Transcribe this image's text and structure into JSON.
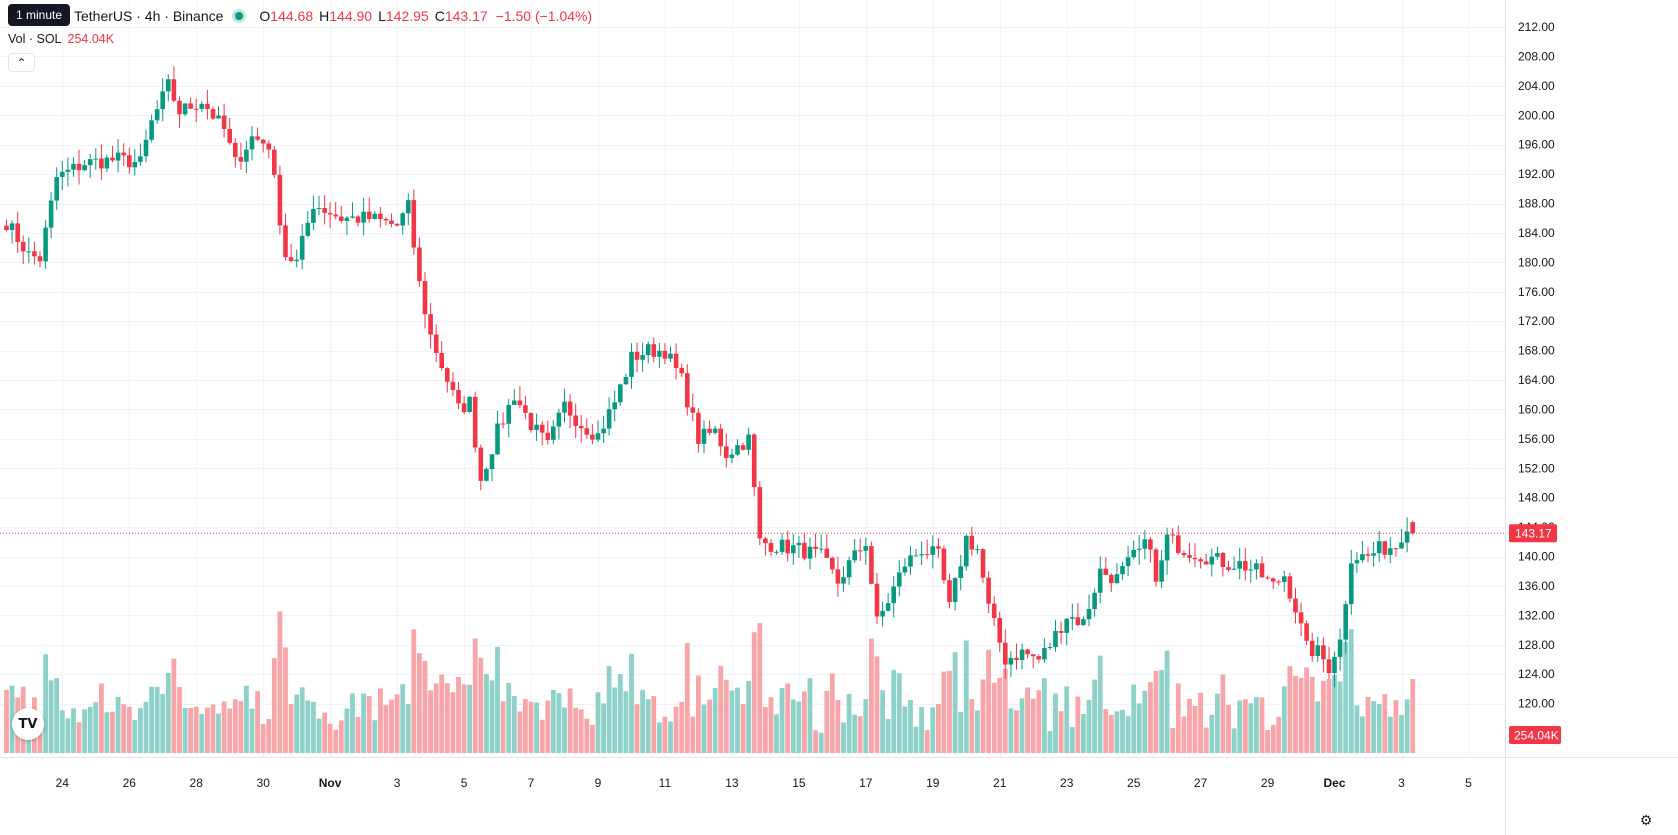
{
  "header": {
    "tooltip": "1 minute",
    "symbol_title": "TetherUS · 4h · Binance",
    "ohlc": {
      "o_label": "O",
      "o_value": "144.68",
      "h_label": "H",
      "h_value": "144.90",
      "l_label": "L",
      "l_value": "142.95",
      "c_label": "C",
      "c_value": "143.17",
      "change": "−1.50 (−1.04%)"
    },
    "volume": {
      "label": "Vol · SOL",
      "value": "254.04K"
    },
    "collapse_icon": "chevron-up-icon"
  },
  "footer": {
    "logo_text": "TV",
    "settings_icon": "gear-icon"
  },
  "colors": {
    "up": "#089981",
    "down": "#f23645",
    "vol_up": "#8dd1c8",
    "vol_down": "#f7a5a8",
    "grid": "#f0f3fa"
  },
  "chart_data": {
    "type": "candlestick",
    "interval": "4h",
    "price_axis": {
      "ylim": [
        118,
        214
      ],
      "ticks": [
        "212.00",
        "208.00",
        "204.00",
        "200.00",
        "196.00",
        "192.00",
        "188.00",
        "184.00",
        "180.00",
        "176.00",
        "172.00",
        "168.00",
        "164.00",
        "160.00",
        "156.00",
        "152.00",
        "148.00",
        "144.00",
        "140.00",
        "136.00",
        "132.00",
        "128.00",
        "124.00",
        "120.00"
      ],
      "last_price_label": "143.17",
      "last_price": 143.17
    },
    "volume_axis": {
      "last_label": "254.04K"
    },
    "time_axis": {
      "labels": [
        "24",
        "26",
        "28",
        "30",
        "Nov",
        "3",
        "5",
        "7",
        "9",
        "11",
        "13",
        "15",
        "17",
        "19",
        "21",
        "23",
        "25",
        "27",
        "29",
        "Dec",
        "3",
        "5"
      ],
      "label_bar_index": [
        10,
        22,
        34,
        46,
        58,
        70,
        82,
        94,
        106,
        118,
        130,
        142,
        154,
        166,
        178,
        190,
        202,
        214,
        226,
        238,
        250,
        262
      ],
      "bold_labels": [
        "Nov",
        "Dec"
      ]
    },
    "waypoints": [
      [
        0,
        185.5
      ],
      [
        4,
        181
      ],
      [
        6,
        180.5
      ],
      [
        9,
        191.5
      ],
      [
        14,
        193.5
      ],
      [
        20,
        194
      ],
      [
        24,
        193.5
      ],
      [
        26,
        199
      ],
      [
        29,
        204
      ],
      [
        31,
        200.5
      ],
      [
        35,
        202
      ],
      [
        39,
        198
      ],
      [
        41,
        193.5
      ],
      [
        44,
        197
      ],
      [
        47,
        196
      ],
      [
        50,
        181
      ],
      [
        52,
        180
      ],
      [
        55,
        188
      ],
      [
        60,
        186
      ],
      [
        65,
        186
      ],
      [
        70,
        185
      ],
      [
        72,
        187.5
      ],
      [
        74,
        177
      ],
      [
        76,
        170
      ],
      [
        78,
        166
      ],
      [
        81,
        160
      ],
      [
        83,
        161
      ],
      [
        85,
        150.5
      ],
      [
        88,
        157
      ],
      [
        91,
        162
      ],
      [
        94,
        158
      ],
      [
        97,
        155
      ],
      [
        100,
        160.5
      ],
      [
        103,
        158
      ],
      [
        106,
        156.5
      ],
      [
        109,
        161
      ],
      [
        112,
        167
      ],
      [
        115,
        168
      ],
      [
        118,
        168
      ],
      [
        121,
        164
      ],
      [
        124,
        156
      ],
      [
        127,
        157
      ],
      [
        129,
        154
      ],
      [
        131,
        155
      ],
      [
        133,
        156
      ],
      [
        135,
        142
      ],
      [
        138,
        141.5
      ],
      [
        142,
        141
      ],
      [
        146,
        140
      ],
      [
        149,
        136.5
      ],
      [
        151,
        139
      ],
      [
        154,
        142
      ],
      [
        156,
        131
      ],
      [
        158,
        134
      ],
      [
        161,
        139
      ],
      [
        164,
        141
      ],
      [
        167,
        140
      ],
      [
        169,
        133
      ],
      [
        172,
        142.5
      ],
      [
        174,
        141
      ],
      [
        176,
        133
      ],
      [
        179,
        126
      ],
      [
        182,
        127
      ],
      [
        185,
        126
      ],
      [
        187,
        128
      ],
      [
        190,
        132
      ],
      [
        193,
        131
      ],
      [
        196,
        138
      ],
      [
        199,
        137
      ],
      [
        202,
        140
      ],
      [
        205,
        142
      ],
      [
        206,
        136
      ],
      [
        208,
        142.5
      ],
      [
        211,
        141
      ],
      [
        215,
        140
      ],
      [
        219,
        139
      ],
      [
        221,
        139
      ],
      [
        224,
        138
      ],
      [
        227,
        136
      ],
      [
        229,
        137.5
      ],
      [
        231,
        133
      ],
      [
        233,
        127.5
      ],
      [
        235,
        127
      ],
      [
        237,
        125
      ],
      [
        238,
        127
      ],
      [
        239,
        128.5
      ],
      [
        241,
        140
      ],
      [
        244,
        140
      ],
      [
        246,
        141
      ],
      [
        249,
        141.5
      ],
      [
        251,
        144.5
      ],
      [
        252,
        143.17
      ]
    ],
    "volume_range_k": [
      0,
      800
    ]
  }
}
